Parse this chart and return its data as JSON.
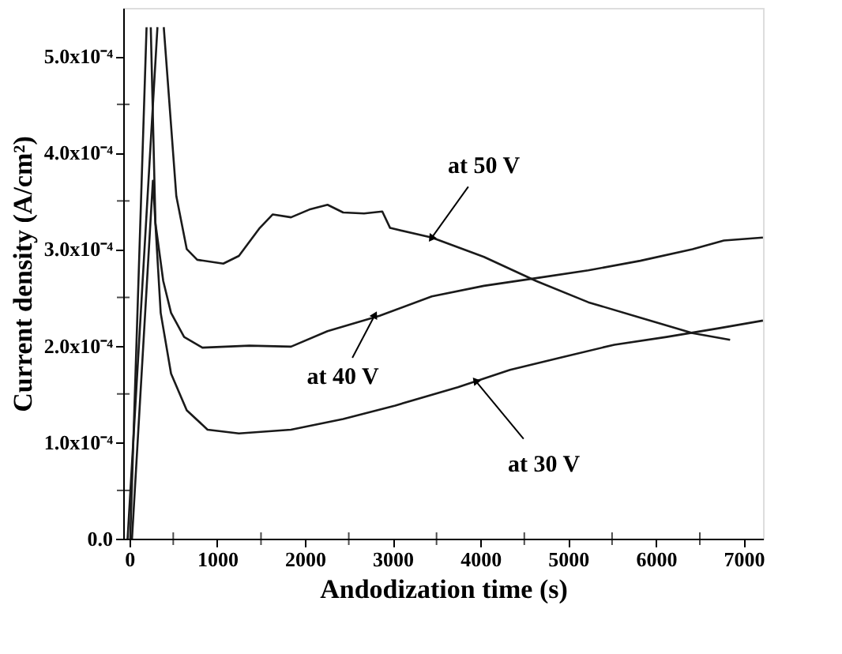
{
  "chart_data": {
    "type": "line",
    "xlabel": "Andodization time (s)",
    "ylabel": "Current density (A/cm²)",
    "xlim": [
      -70,
      7220
    ],
    "ylim": [
      0,
      0.00055
    ],
    "xticks": [
      0,
      {
        "value": 500,
        "label": null
      },
      1000,
      {
        "value": 1500,
        "label": null
      },
      2000,
      {
        "value": 2500,
        "label": null
      },
      3000,
      {
        "value": 3500,
        "label": null
      },
      4000,
      {
        "value": 4500,
        "label": null
      },
      5000,
      {
        "value": 5500,
        "label": null
      },
      6000,
      {
        "value": 6500,
        "label": null
      },
      7000
    ],
    "yticks": [
      {
        "value": 0,
        "label": "0.0"
      },
      {
        "value": 5e-05,
        "label": null
      },
      {
        "value": 0.0001,
        "label": "1.0x10⁻⁴"
      },
      {
        "value": 0.00015,
        "label": null
      },
      {
        "value": 0.0002,
        "label": "2.0x10⁻⁴"
      },
      {
        "value": 0.00025,
        "label": null
      },
      {
        "value": 0.0003,
        "label": "3.0x10⁻⁴"
      },
      {
        "value": 0.00035,
        "label": null
      },
      {
        "value": 0.0004,
        "label": "4.0x10⁻⁴"
      },
      {
        "value": 0.00045,
        "label": null
      },
      {
        "value": 0.0005,
        "label": "5.0x10⁻⁴"
      }
    ],
    "grid": false,
    "marker": "none",
    "line_style": "solid",
    "series": [
      {
        "color": "#1a1a1a",
        "x": [
          -20,
          320,
          357,
          392,
          535,
          654,
          773,
          1070,
          1248,
          1486,
          1634,
          1842,
          2050,
          2258,
          2436,
          2674,
          2882,
          2971,
          3446,
          4040,
          4635,
          5229,
          5823,
          6417,
          6845
        ],
        "values": [
          0,
          0.00053,
          null,
          0.00053,
          0.000355,
          0.0003,
          0.000289,
          0.000285,
          0.000293,
          0.000322,
          0.000336,
          0.000333,
          0.000341,
          0.000346,
          0.000338,
          0.000337,
          0.000339,
          0.000322,
          0.000312,
          0.000292,
          0.000267,
          0.000245,
          0.000229,
          0.000213,
          0.000206
        ]
      },
      {
        "color": "#1a1a1a",
        "x": [
          10,
          196,
          220,
          244,
          297,
          386,
          475,
          624,
          832,
          1367,
          1842,
          2258,
          2852,
          3446,
          4040,
          4635,
          5229,
          5823,
          6417,
          6774,
          7219
        ],
        "values": [
          0,
          0.00053,
          null,
          0.00053,
          0.000327,
          0.000267,
          0.000234,
          0.000209,
          0.000198,
          0.0002,
          0.000199,
          0.000215,
          0.000231,
          0.000251,
          0.000262,
          0.00027,
          0.000278,
          0.000288,
          0.0003,
          0.000309,
          0.000312
        ]
      },
      {
        "color": "#1a1a1a",
        "x": [
          30,
          268,
          357,
          475,
          654,
          891,
          1248,
          1842,
          2436,
          3030,
          3743,
          4338,
          4932,
          5526,
          6120,
          6714,
          7219
        ],
        "values": [
          0,
          0.000371,
          0.000234,
          0.000171,
          0.000133,
          0.000113,
          0.000109,
          0.000113,
          0.000124,
          0.000138,
          0.000157,
          0.000175,
          0.000188,
          0.000201,
          0.000209,
          0.000218,
          0.000226
        ]
      }
    ],
    "annotations": [
      {
        "text": "at 50 V",
        "x": 3446,
        "y": 0.000312
      },
      {
        "text": "at 40 V",
        "x": 2793,
        "y": 0.000231
      },
      {
        "text": "at 30 V",
        "x": 3950,
        "y": 0.000163
      }
    ]
  }
}
